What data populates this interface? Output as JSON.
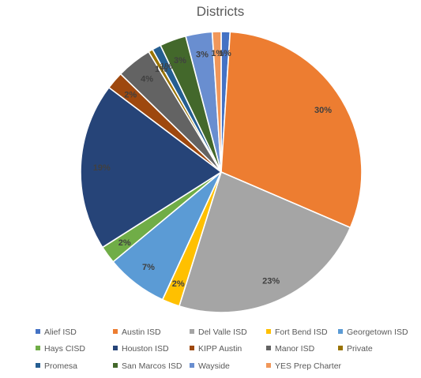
{
  "chart_data": {
    "type": "pie",
    "title": "Districts",
    "start_angle_deg": 0,
    "direction": "clockwise",
    "slices": [
      {
        "label": "Alief ISD",
        "value": 1,
        "display": "1%",
        "color": "#4472C4"
      },
      {
        "label": "Austin ISD",
        "value": 30,
        "display": "30%",
        "color": "#ED7D31"
      },
      {
        "label": "Del Valle ISD",
        "value": 23,
        "display": "23%",
        "color": "#A5A5A5"
      },
      {
        "label": "Fort Bend ISD",
        "value": 2,
        "display": "2%",
        "color": "#FFC000"
      },
      {
        "label": "Georgetown ISD",
        "value": 7,
        "display": "7%",
        "color": "#5B9BD5"
      },
      {
        "label": "Hays CISD",
        "value": 2,
        "display": "2%",
        "color": "#70AD47"
      },
      {
        "label": "Houston ISD",
        "value": 0,
        "display": "",
        "color": "#264478"
      },
      {
        "label": "",
        "value": 19,
        "display": "19%",
        "color": "#264478"
      },
      {
        "label": "KIPP Austin",
        "value": 2,
        "display": "2%",
        "color": "#9E480E"
      },
      {
        "label": "Manor ISD",
        "value": 4,
        "display": "4%",
        "color": "#636363"
      },
      {
        "label": "Private",
        "value": 0.5,
        "display": "1%",
        "color": "#997300"
      },
      {
        "label": "Promesa",
        "value": 1,
        "display": "1%",
        "color": "#255E91"
      },
      {
        "label": "San Marcos ISD",
        "value": 3,
        "display": "3%",
        "color": "#43682B"
      },
      {
        "label": "Wayside",
        "value": 3,
        "display": "3%",
        "color": "#698ED0"
      },
      {
        "label": "YES Prep Charter",
        "value": 1,
        "display": "1%",
        "color": "#F1975A"
      }
    ],
    "legend": {
      "position": "bottom",
      "items": [
        {
          "label": "Alief ISD",
          "color": "#4472C4"
        },
        {
          "label": "Austin ISD",
          "color": "#ED7D31"
        },
        {
          "label": "Del Valle ISD",
          "color": "#A5A5A5"
        },
        {
          "label": "Fort Bend ISD",
          "color": "#FFC000"
        },
        {
          "label": "Georgetown ISD",
          "color": "#5B9BD5"
        },
        {
          "label": "Hays CISD",
          "color": "#70AD47"
        },
        {
          "label": "Houston ISD",
          "color": "#264478"
        },
        {
          "label": "KIPP Austin",
          "color": "#9E480E"
        },
        {
          "label": "Manor ISD",
          "color": "#636363"
        },
        {
          "label": "Private",
          "color": "#997300"
        },
        {
          "label": "Promesa",
          "color": "#255E91"
        },
        {
          "label": "San Marcos ISD",
          "color": "#43682B"
        },
        {
          "label": "Wayside",
          "color": "#698ED0"
        },
        {
          "label": "YES Prep Charter",
          "color": "#F1975A"
        }
      ]
    }
  }
}
